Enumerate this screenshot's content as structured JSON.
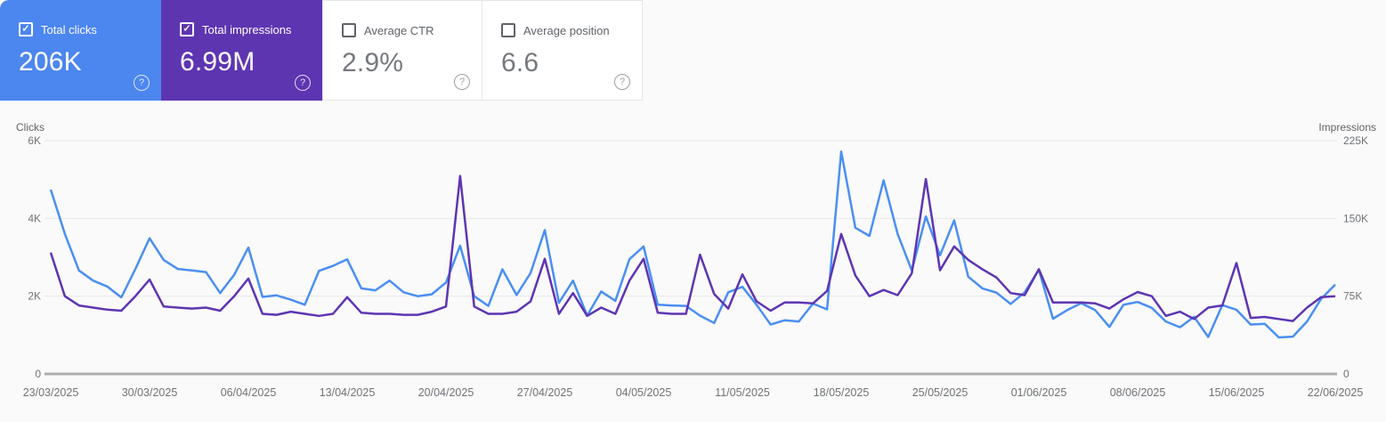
{
  "cards": [
    {
      "label": "Total clicks",
      "value": "206K",
      "selected": true,
      "bg": "#4c86ef"
    },
    {
      "label": "Total impressions",
      "value": "6.99M",
      "selected": true,
      "bg": "#5e35b1"
    },
    {
      "label": "Average CTR",
      "value": "2.9%",
      "selected": false,
      "bg": "#ffffff"
    },
    {
      "label": "Average position",
      "value": "6.6",
      "selected": false,
      "bg": "#ffffff"
    }
  ],
  "chart_data": {
    "type": "line",
    "grid": true,
    "x_labels": [
      "23/03/2025",
      "30/03/2025",
      "06/04/2025",
      "13/04/2025",
      "20/04/2025",
      "27/04/2025",
      "04/05/2025",
      "11/05/2025",
      "18/05/2025",
      "25/05/2025",
      "01/06/2025",
      "08/06/2025",
      "15/06/2025",
      "22/06/2025"
    ],
    "left_axis": {
      "title": "Clicks",
      "ticks": [
        "6K",
        "4K",
        "2K",
        "0"
      ],
      "tick_values": [
        6000,
        4000,
        2000,
        0
      ],
      "min": 0,
      "max": 6000
    },
    "right_axis": {
      "title": "Impressions",
      "ticks": [
        "225K",
        "150K",
        "75K",
        "0"
      ],
      "tick_values": [
        225000,
        150000,
        75000,
        0
      ],
      "min": 0,
      "max": 225000
    },
    "series": [
      {
        "name": "Total clicks",
        "axis": "left",
        "color": "#4a8ff2",
        "values": [
          4740,
          3600,
          2660,
          2400,
          2250,
          1970,
          2700,
          3490,
          2930,
          2700,
          2660,
          2620,
          2080,
          2550,
          3250,
          1980,
          2020,
          1910,
          1780,
          2650,
          2780,
          2950,
          2200,
          2150,
          2400,
          2100,
          2000,
          2050,
          2350,
          3300,
          2000,
          1750,
          2690,
          2030,
          2600,
          3700,
          1830,
          2400,
          1500,
          2120,
          1880,
          2950,
          3280,
          1780,
          1760,
          1750,
          1500,
          1310,
          2100,
          2240,
          1780,
          1270,
          1380,
          1350,
          1810,
          1660,
          5720,
          3760,
          3550,
          4980,
          3600,
          2660,
          4050,
          3050,
          3950,
          2500,
          2200,
          2090,
          1800,
          2100,
          2680,
          1420,
          1640,
          1820,
          1640,
          1210,
          1780,
          1850,
          1700,
          1350,
          1200,
          1470,
          950,
          1770,
          1650,
          1270,
          1290,
          940,
          960,
          1350,
          1930,
          2300
        ]
      },
      {
        "name": "Total impressions",
        "axis": "right",
        "color": "#5e35b1",
        "values": [
          117000,
          75000,
          66000,
          64000,
          62000,
          61000,
          75000,
          91000,
          65000,
          64000,
          63000,
          64000,
          61000,
          75000,
          92000,
          58000,
          57000,
          60000,
          58000,
          56000,
          58000,
          74000,
          59000,
          58000,
          58000,
          57000,
          57000,
          60000,
          65000,
          191000,
          65000,
          58000,
          58000,
          60000,
          70000,
          111000,
          58000,
          78000,
          56000,
          64000,
          58000,
          90000,
          111000,
          59000,
          58000,
          58000,
          115000,
          77000,
          63000,
          96000,
          70000,
          61000,
          69000,
          69000,
          68000,
          80000,
          135000,
          95000,
          75000,
          81000,
          76000,
          97000,
          188000,
          100000,
          123000,
          110000,
          101000,
          93000,
          78000,
          76000,
          101000,
          69000,
          69000,
          69000,
          68000,
          63000,
          72000,
          79000,
          75000,
          56000,
          60000,
          53000,
          64000,
          66000,
          107000,
          54000,
          55000,
          53000,
          51000,
          64000,
          74000,
          75000
        ]
      }
    ],
    "colors": {
      "gridline": "#e8e8e8",
      "zero_axis": "#aaacae",
      "tick_text": "#6f7377"
    }
  }
}
